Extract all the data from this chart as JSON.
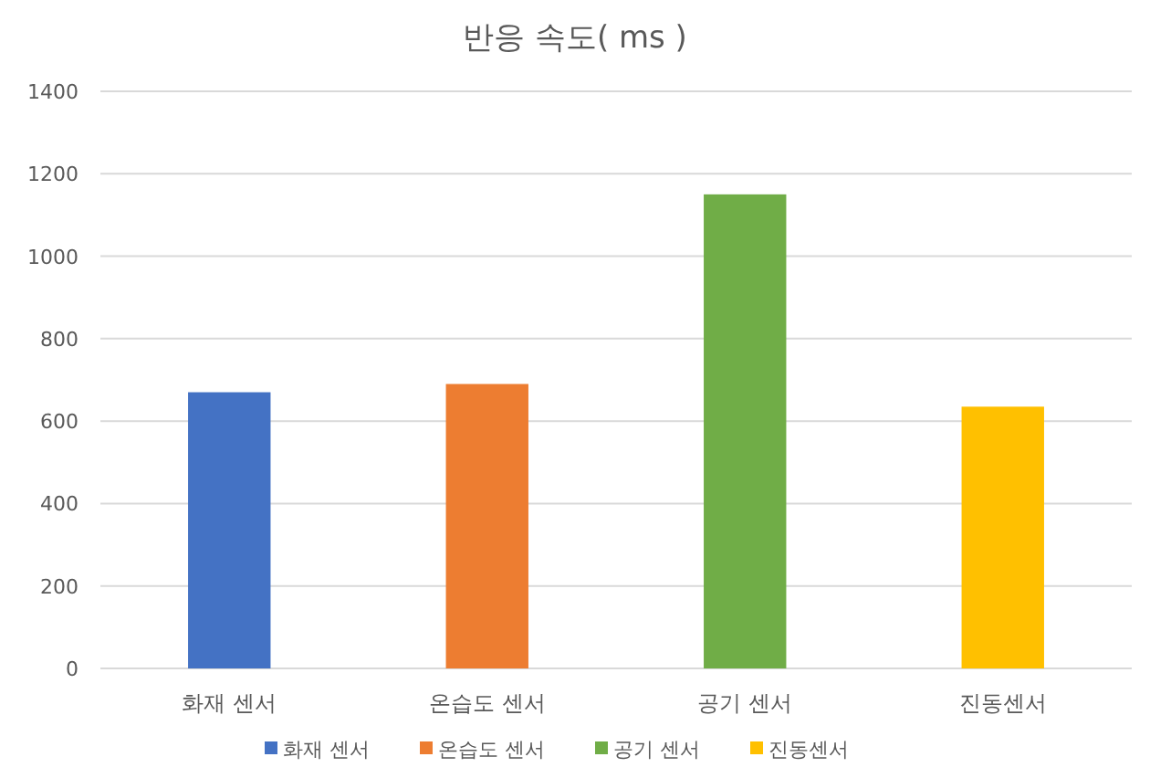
{
  "chart_data": {
    "type": "bar",
    "title": "반응 속도( ms )",
    "categories": [
      "화재 센서",
      "온습도 센서",
      "공기 센서",
      "진동센서"
    ],
    "series": [
      {
        "name": "화재 센서",
        "color": "#4472c4",
        "values": [
          670,
          null,
          null,
          null
        ]
      },
      {
        "name": "온습도 센서",
        "color": "#ed7d31",
        "values": [
          null,
          690,
          null,
          null
        ]
      },
      {
        "name": "공기 센서",
        "color": "#70ad47",
        "values": [
          null,
          null,
          1150,
          null
        ]
      },
      {
        "name": "진동센서",
        "color": "#ffc000",
        "values": [
          null,
          null,
          null,
          635
        ]
      }
    ],
    "ylim": [
      0,
      1400
    ],
    "yticks": [
      0,
      200,
      400,
      600,
      800,
      1000,
      1200,
      1400
    ],
    "grid": "y",
    "legend": "bottom"
  }
}
